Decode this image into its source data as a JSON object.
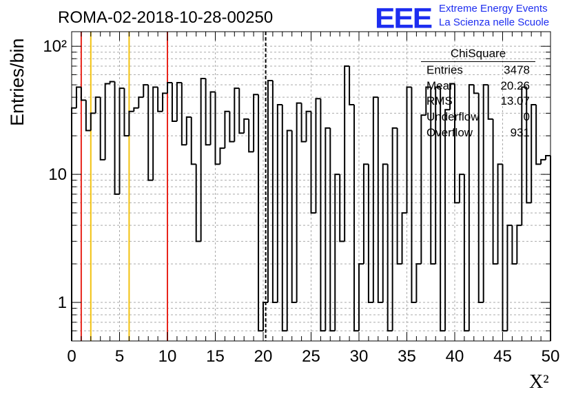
{
  "chart_data": {
    "type": "histogram",
    "title": "ROMA-02-2018-10-28-00250",
    "ylabel": "Entries/bin",
    "xlabel": "X²",
    "xlim": [
      0,
      50
    ],
    "ylim": [
      0.5,
      130
    ],
    "yscale": "log",
    "bin_width": 0.5,
    "grid": true,
    "x_ticks": [
      "0",
      "5",
      "10",
      "15",
      "20",
      "25",
      "30",
      "35",
      "40",
      "45",
      "50"
    ],
    "y_ticks": [
      {
        "value": 1,
        "label": "1"
      },
      {
        "value": 10,
        "label": "10"
      },
      {
        "value": 100,
        "label": "10²"
      }
    ],
    "bin_values": [
      33,
      48,
      38,
      22,
      30,
      40,
      13,
      51,
      53,
      7,
      47,
      20,
      31,
      33,
      40,
      50,
      9,
      48,
      31,
      43,
      52,
      26,
      52,
      17,
      28,
      12,
      3,
      56,
      17,
      44,
      12,
      16,
      31,
      18,
      47,
      21,
      27,
      15,
      42,
      0.6,
      1,
      54,
      1,
      35,
      0.6,
      22,
      1,
      36,
      18,
      31,
      5,
      39,
      0.6,
      23,
      0.6,
      10,
      3,
      70,
      35,
      0.6,
      2,
      12,
      1,
      40,
      1,
      12,
      0.6,
      23,
      2,
      5,
      48,
      1,
      2,
      29,
      48,
      2,
      48,
      0.6,
      32,
      51,
      6,
      10,
      0.6,
      50,
      43,
      1,
      50,
      27,
      2,
      12,
      0.6,
      4,
      2,
      4,
      48,
      6,
      35,
      12,
      13,
      14
    ],
    "vertical_lines": [
      {
        "x": 1,
        "color": "#e8241a",
        "style": "solid"
      },
      {
        "x": 2,
        "color": "#f2c10f",
        "style": "solid"
      },
      {
        "x": 6,
        "color": "#f2c10f",
        "style": "solid"
      },
      {
        "x": 10,
        "color": "#e8241a",
        "style": "solid"
      },
      {
        "x": 20.26,
        "color": "#000000",
        "style": "dashed"
      }
    ],
    "stats": {
      "name": "ChiSquare",
      "entries": "3478",
      "mean": "20.26",
      "rms": "13.07",
      "underflow": "0",
      "overflow": "931"
    }
  },
  "stats_labels": {
    "entries": "Entries",
    "mean": "Mean",
    "rms": "RMS",
    "underflow": "Underflow",
    "overflow": "Overflow"
  },
  "logo": {
    "mark": "EEE",
    "line1": "Extreme Energy Events",
    "line2": "La Scienza nelle Scuole",
    "color": "#1d2df0"
  }
}
